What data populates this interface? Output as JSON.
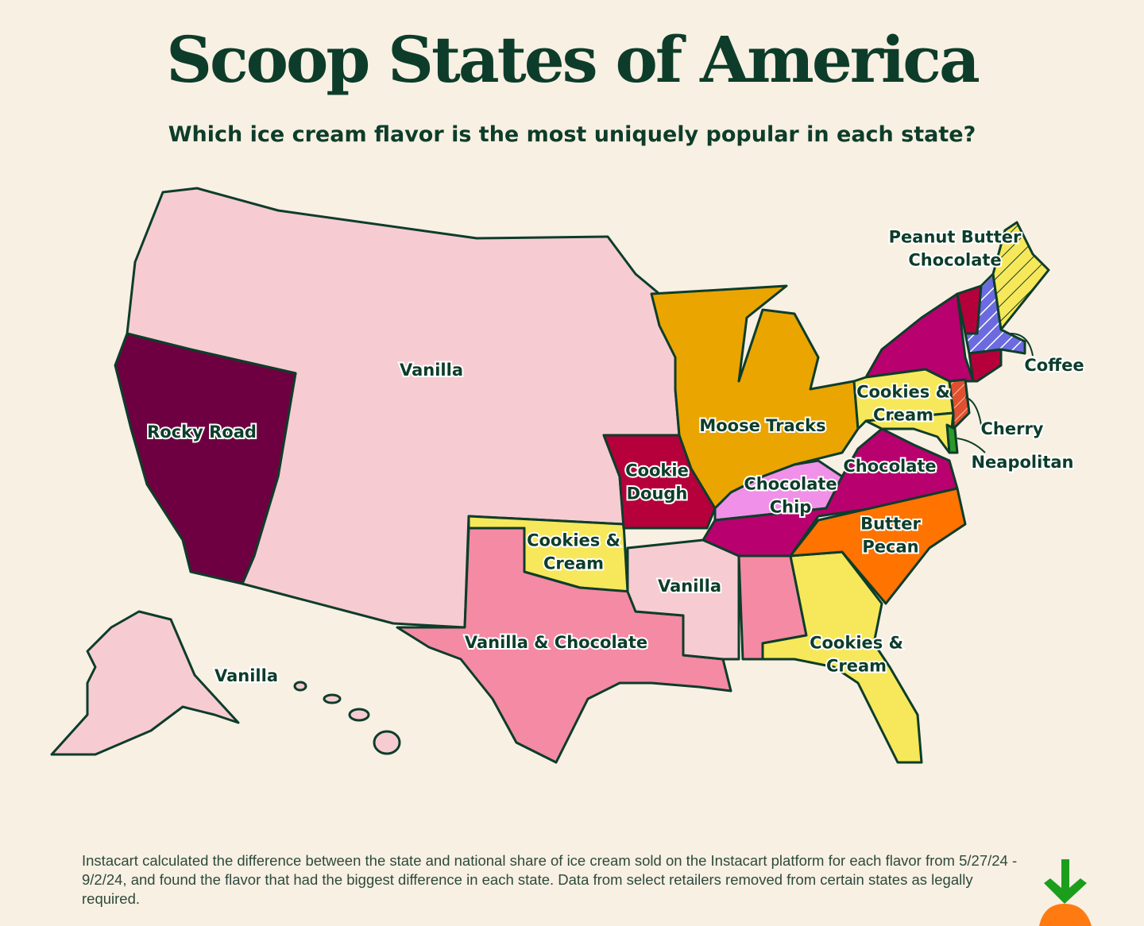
{
  "header": {
    "title": "Scoop States of America",
    "subtitle": "Which ice cream flavor is the most uniquely popular in each state?"
  },
  "map": {
    "labels": [
      {
        "lines": [
          "Vanilla"
        ]
      },
      {
        "lines": [
          "Rocky Road"
        ]
      },
      {
        "lines": [
          "Moose Tracks"
        ]
      },
      {
        "lines": [
          "Cookie",
          "Dough"
        ]
      },
      {
        "lines": [
          "Chocolate",
          "Chip"
        ]
      },
      {
        "lines": [
          "Chocolate"
        ]
      },
      {
        "lines": [
          "Butter",
          "Pecan"
        ]
      },
      {
        "lines": [
          "Cookies &",
          "Cream"
        ]
      },
      {
        "lines": [
          "Vanilla"
        ]
      },
      {
        "lines": [
          "Vanilla & Chocolate"
        ]
      },
      {
        "lines": [
          "Cookies &",
          "Cream"
        ]
      },
      {
        "lines": [
          "Vanilla"
        ]
      },
      {
        "lines": [
          "Peanut Butter",
          "Chocolate"
        ]
      },
      {
        "lines": [
          "Coffee"
        ]
      },
      {
        "lines": [
          "Cookies &",
          "Cream"
        ]
      },
      {
        "lines": [
          "Cherry"
        ]
      },
      {
        "lines": [
          "Neapolitan"
        ]
      }
    ]
  },
  "footnote": "Instacart calculated the difference between the state and national share of ice cream sold on the Instacart platform for each flavor from 5/27/24 - 9/2/24, and found the flavor that had the biggest difference in each state. Data from select retailers removed from certain states as legally required."
}
